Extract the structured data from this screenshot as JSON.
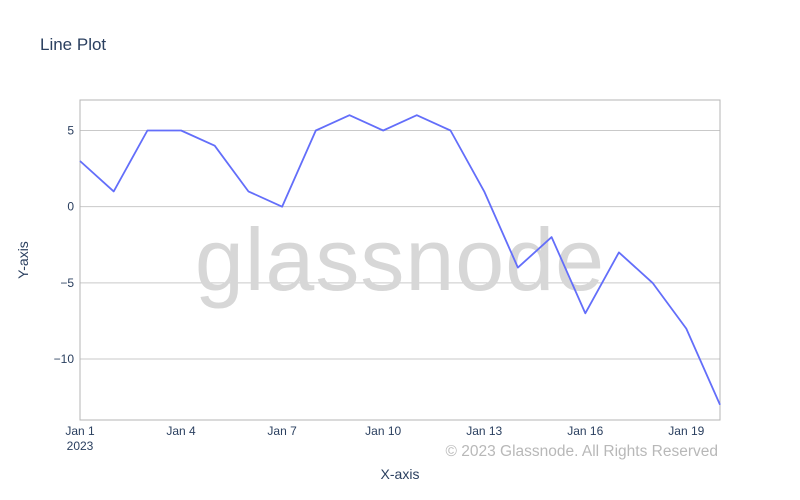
{
  "chart_data": {
    "type": "line",
    "title": "Line Plot",
    "xlabel": "X-axis",
    "ylabel": "Y-axis",
    "x": [
      "2023-01-01",
      "2023-01-02",
      "2023-01-03",
      "2023-01-04",
      "2023-01-05",
      "2023-01-06",
      "2023-01-07",
      "2023-01-08",
      "2023-01-09",
      "2023-01-10",
      "2023-01-11",
      "2023-01-12",
      "2023-01-13",
      "2023-01-14",
      "2023-01-15",
      "2023-01-16",
      "2023-01-17",
      "2023-01-18",
      "2023-01-19",
      "2023-01-20"
    ],
    "series": [
      {
        "values": [
          3,
          1,
          5,
          5,
          4,
          1,
          0,
          5,
          6,
          5,
          6,
          5,
          1,
          -4,
          -2,
          -7,
          -3,
          -5,
          -8,
          -13
        ]
      }
    ],
    "xlim": [
      "2023-01-01",
      "2023-01-20"
    ],
    "ylim": [
      -14,
      7
    ],
    "y_ticks": [
      5,
      0,
      -5,
      -10
    ],
    "y_tick_labels": [
      "5",
      "0",
      "−5",
      "−10"
    ],
    "x_ticks": [
      "2023-01-01",
      "2023-01-04",
      "2023-01-07",
      "2023-01-10",
      "2023-01-13",
      "2023-01-16",
      "2023-01-19"
    ],
    "x_tick_labels": [
      [
        "Jan 1",
        "2023"
      ],
      [
        "Jan 4"
      ],
      [
        "Jan 7"
      ],
      [
        "Jan 10"
      ],
      [
        "Jan 13"
      ],
      [
        "Jan 16"
      ],
      [
        "Jan 19"
      ]
    ],
    "grid": true,
    "legend": "none",
    "line_color": "#636efa"
  },
  "watermark": "glassnode",
  "copyright": "© 2023 Glassnode. All Rights Reserved"
}
